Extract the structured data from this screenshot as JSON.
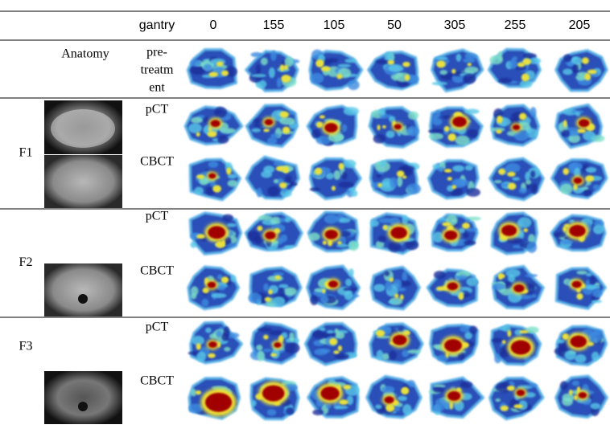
{
  "table": {
    "header": [
      "gantry",
      "0",
      "155",
      "105",
      "50",
      "305",
      "255",
      "205"
    ],
    "anatomy": {
      "group": "Anatomy",
      "label_lines": [
        "pre-",
        "treatm",
        "ent"
      ]
    },
    "groups": [
      {
        "name": "F1",
        "rows": [
          "pCT",
          "CBCT"
        ]
      },
      {
        "name": "F2",
        "rows": [
          "pCT",
          "CBCT"
        ]
      },
      {
        "name": "F3",
        "rows": [
          "pCT",
          "CBCT"
        ]
      }
    ]
  }
}
